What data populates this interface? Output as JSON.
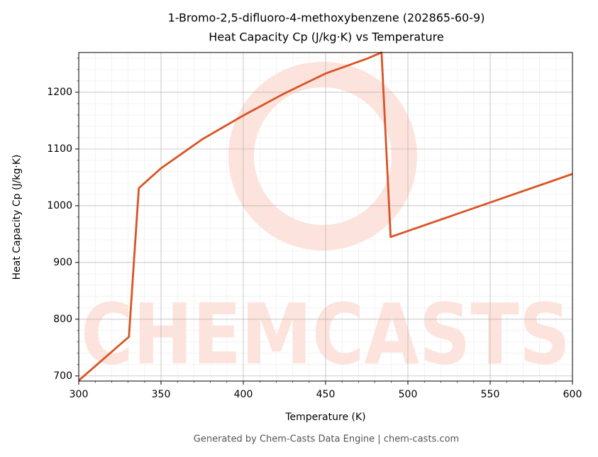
{
  "chart_data": {
    "type": "line",
    "title": "1-Bromo-2,5-difluoro-4-methoxybenzene (202865-60-9)",
    "subtitle": "Heat Capacity Cp (J/kg·K) vs Temperature",
    "x_label": "Temperature (K)",
    "y_label": "Heat Capacity Cp (J/kg·K)",
    "footer": "Generated by Chem-Casts Data Engine | chem-casts.com",
    "watermark": "CHEMCASTS",
    "x": [
      300,
      330.5,
      336.5,
      350,
      375,
      400,
      425,
      450,
      475,
      484,
      489.5,
      600
    ],
    "series": [
      {
        "name": "Cp",
        "color": "#d95424",
        "values": [
          692,
          769,
          1031,
          1066,
          1117,
          1159,
          1198,
          1233,
          1259,
          1270,
          945,
          1056
        ]
      }
    ],
    "xlim": [
      300,
      600
    ],
    "ylim": [
      691,
      1270
    ],
    "xticks": [
      300,
      350,
      400,
      450,
      500,
      550,
      600
    ],
    "yticks": [
      700,
      800,
      900,
      1000,
      1100,
      1200
    ],
    "xminorticks": [
      310,
      320,
      330,
      340,
      360,
      370,
      380,
      390,
      410,
      420,
      430,
      440,
      460,
      470,
      480,
      490,
      510,
      520,
      530,
      540,
      560,
      570,
      580,
      590
    ],
    "yminorticks": [
      720,
      740,
      760,
      780,
      820,
      840,
      860,
      880,
      920,
      940,
      960,
      980,
      1020,
      1040,
      1060,
      1080,
      1120,
      1140,
      1160,
      1180,
      1220,
      1240,
      1260
    ],
    "grid": true
  }
}
